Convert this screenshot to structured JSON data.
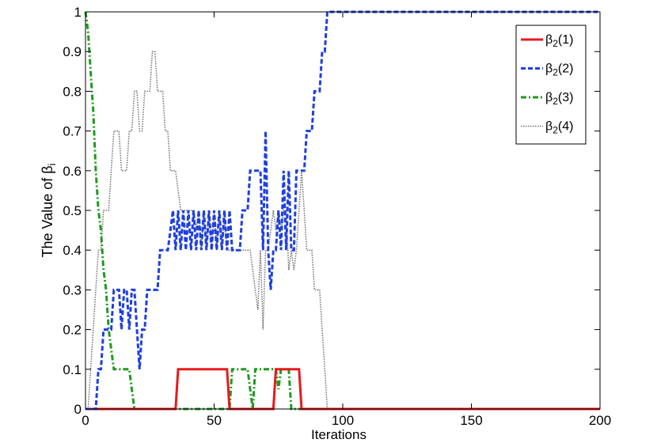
{
  "chart_data": {
    "type": "line",
    "title": "",
    "xlabel": "Iterations",
    "ylabel_main": "The Value of β",
    "ylabel_sub": "i",
    "xlim": [
      0,
      200
    ],
    "ylim": [
      0,
      1
    ],
    "xticks": [
      0,
      50,
      100,
      150,
      200
    ],
    "yticks": [
      0,
      0.1,
      0.2,
      0.3,
      0.4,
      0.5,
      0.6,
      0.7,
      0.8,
      0.9,
      1
    ],
    "grid": false,
    "legend_position": "top-right",
    "series": [
      {
        "name_main": "β",
        "name_sub": "2",
        "name_suffix": "(1)",
        "color": "#e8191c",
        "style": "solid",
        "x": [
          0,
          35,
          36,
          55,
          56,
          73,
          74,
          83,
          84,
          200
        ],
        "y": [
          0,
          0,
          0.1,
          0.1,
          0,
          0,
          0.1,
          0.1,
          0,
          0
        ]
      },
      {
        "name_main": "β",
        "name_sub": "2",
        "name_suffix": "(2)",
        "color": "#1f3fe0",
        "style": "dashed",
        "x": [
          0,
          4,
          5,
          6,
          7,
          8,
          9,
          10,
          11,
          12,
          13,
          14,
          15,
          16,
          17,
          18,
          19,
          20,
          21,
          22,
          23,
          24,
          25,
          26,
          27,
          28,
          29,
          30,
          31,
          32,
          33,
          34,
          35,
          36,
          37,
          38,
          39,
          40,
          41,
          42,
          43,
          44,
          45,
          46,
          47,
          48,
          49,
          50,
          51,
          52,
          53,
          54,
          55,
          56,
          57,
          58,
          59,
          60,
          61,
          62,
          63,
          64,
          65,
          66,
          67,
          68,
          69,
          70,
          71,
          72,
          73,
          74,
          75,
          76,
          77,
          78,
          79,
          80,
          81,
          82,
          83,
          84,
          85,
          86,
          87,
          88,
          89,
          90,
          91,
          92,
          93,
          94,
          95,
          96,
          97,
          200
        ],
        "y": [
          0,
          0,
          0.1,
          0.1,
          0.2,
          0.2,
          0.2,
          0.2,
          0.3,
          0.3,
          0.3,
          0.2,
          0.3,
          0.3,
          0.2,
          0.3,
          0.3,
          0.2,
          0.1,
          0.2,
          0.2,
          0.3,
          0.3,
          0.3,
          0.3,
          0.3,
          0.4,
          0.4,
          0.4,
          0.4,
          0.45,
          0.5,
          0.4,
          0.5,
          0.4,
          0.5,
          0.4,
          0.5,
          0.4,
          0.5,
          0.4,
          0.5,
          0.4,
          0.5,
          0.4,
          0.5,
          0.4,
          0.5,
          0.4,
          0.5,
          0.4,
          0.5,
          0.4,
          0.5,
          0.4,
          0.4,
          0.4,
          0.4,
          0.5,
          0.5,
          0.5,
          0.6,
          0.6,
          0.6,
          0.6,
          0.6,
          0.4,
          0.7,
          0.4,
          0.3,
          0.4,
          0.4,
          0.5,
          0.4,
          0.6,
          0.4,
          0.6,
          0.4,
          0.4,
          0.6,
          0.6,
          0.6,
          0.6,
          0.7,
          0.7,
          0.7,
          0.8,
          0.8,
          0.8,
          0.9,
          0.9,
          1,
          1,
          1,
          1,
          1
        ],
        "y_overrides_note": ""
      },
      {
        "name_main": "β",
        "name_sub": "2",
        "name_suffix": "(3)",
        "color": "#1e9a1e",
        "style": "dashdot",
        "x": [
          0,
          1,
          2,
          3,
          4,
          5,
          6,
          7,
          8,
          9,
          10,
          11,
          17,
          18,
          19,
          20,
          56,
          57,
          63,
          64,
          65,
          66,
          67,
          74,
          75,
          76,
          77,
          78,
          79,
          80,
          200
        ],
        "y": [
          1,
          0.95,
          0.85,
          0.75,
          0.6,
          0.5,
          0.45,
          0.35,
          0.3,
          0.2,
          0.15,
          0.1,
          0.1,
          0.05,
          0,
          0,
          0,
          0.1,
          0.1,
          0.05,
          0,
          0.1,
          0.1,
          0.1,
          0.05,
          0.1,
          0.1,
          0.1,
          0.1,
          0,
          0
        ]
      },
      {
        "name_main": "β",
        "name_sub": "2",
        "name_suffix": "(4)",
        "color": "#707070",
        "style": "dotted",
        "x": [
          0,
          1,
          2,
          3,
          4,
          5,
          6,
          7,
          8,
          9,
          10,
          11,
          12,
          13,
          14,
          15,
          16,
          17,
          18,
          19,
          20,
          21,
          22,
          23,
          24,
          25,
          26,
          27,
          28,
          29,
          30,
          31,
          32,
          33,
          34,
          35,
          36,
          37,
          38,
          39,
          40,
          41,
          42,
          43,
          44,
          45,
          46,
          47,
          48,
          49,
          50,
          51,
          52,
          53,
          54,
          55,
          56,
          57,
          58,
          59,
          60,
          61,
          62,
          63,
          64,
          65,
          66,
          67,
          68,
          69,
          70,
          71,
          72,
          73,
          74,
          75,
          76,
          77,
          78,
          79,
          80,
          81,
          82,
          83,
          84,
          85,
          86,
          87,
          88,
          89,
          90,
          91,
          92,
          93,
          94,
          95,
          96,
          97,
          200
        ],
        "y": [
          0,
          0,
          0.1,
          0.2,
          0.3,
          0.4,
          0.4,
          0.5,
          0.5,
          0.5,
          0.6,
          0.7,
          0.7,
          0.7,
          0.6,
          0.6,
          0.6,
          0.7,
          0.7,
          0.8,
          0.8,
          0.7,
          0.7,
          0.8,
          0.8,
          0.8,
          0.9,
          0.9,
          0.8,
          0.8,
          0.8,
          0.7,
          0.7,
          0.6,
          0.6,
          0.6,
          0.55,
          0.5,
          0.5,
          0.5,
          0.5,
          0.5,
          0.5,
          0.45,
          0.5,
          0.4,
          0.5,
          0.4,
          0.5,
          0.4,
          0.5,
          0.4,
          0.5,
          0.4,
          0.5,
          0.4,
          0.4,
          0.4,
          0.4,
          0.4,
          0.4,
          0.4,
          0.4,
          0.4,
          0.4,
          0.35,
          0.3,
          0.25,
          0.4,
          0.2,
          0.4,
          0.4,
          0.45,
          0.5,
          0.45,
          0.5,
          0.45,
          0.5,
          0.5,
          0.35,
          0.4,
          0.35,
          0.4,
          0.5,
          0.6,
          0.5,
          0.4,
          0.4,
          0.4,
          0.3,
          0.3,
          0.3,
          0.2,
          0.1,
          0,
          0,
          0,
          0,
          0
        ]
      }
    ]
  }
}
